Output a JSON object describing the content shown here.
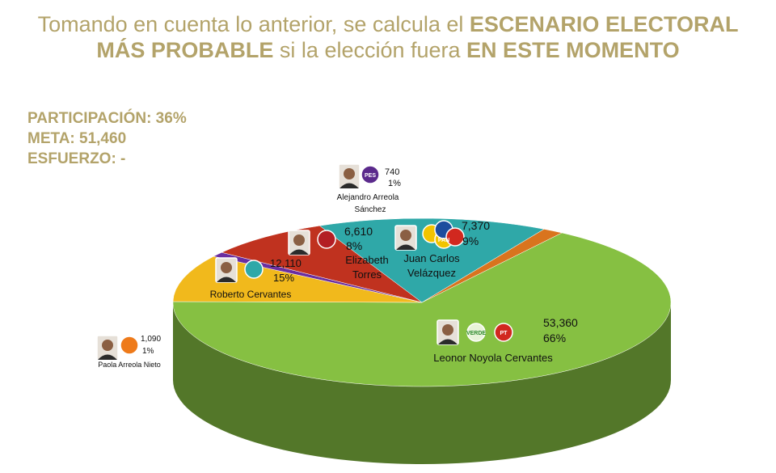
{
  "header": {
    "line1_regular": "Tomando en cuenta lo anterior, se calcula el ",
    "line1_bold": "ESCENARIO ELECTORAL",
    "line2_bold_a": "MÁS PROBABLE",
    "line2_regular": " si la elección fuera ",
    "line2_bold_b": "EN ESTE MOMENTO"
  },
  "stats": {
    "participacion": "PARTICIPACIÓN: 36%",
    "meta": "META: 51,460",
    "esfuerzo": "ESFUERZO: -"
  },
  "colors": {
    "title": "#b3a36a",
    "green": "#86c042",
    "teal": "#2fa8a8",
    "red": "#c0321f",
    "purple": "#6a2ea0",
    "yellow": "#f1b91c",
    "orange": "#d9741e"
  },
  "chart_data": {
    "type": "pie",
    "title": "",
    "slices": [
      {
        "candidate": "Leonor Noyola Cervantes",
        "value": 53360,
        "value_label": "53,360",
        "percent": "66%",
        "color": "#86c042",
        "parties": [
          "VERDE",
          "PT"
        ]
      },
      {
        "candidate": "Juan Carlos Velázquez",
        "value": 7370,
        "value_label": "7,370",
        "percent": "9%",
        "color": "#f1b91c",
        "parties": [
          "PRD",
          "PAN"
        ]
      },
      {
        "candidate": "Alejandro Arreola Sánchez",
        "value": 740,
        "value_label": "740",
        "percent": "1%",
        "color": "#6a2ea0",
        "parties": [
          "PES"
        ]
      },
      {
        "candidate": "Elizabeth Torres",
        "value": 6610,
        "value_label": "6,610",
        "percent": "8%",
        "color": "#c0321f",
        "parties": [
          "morena"
        ]
      },
      {
        "candidate": "Roberto Cervantes",
        "value": 12110,
        "value_label": "12,110",
        "percent": "15%",
        "color": "#2fa8a8",
        "parties": [
          "alianza"
        ]
      },
      {
        "candidate": "Paola Arreola Nieto",
        "value": 1090,
        "value_label": "1,090",
        "percent": "1%",
        "color": "#d9741e",
        "parties": [
          "MC"
        ]
      }
    ]
  }
}
